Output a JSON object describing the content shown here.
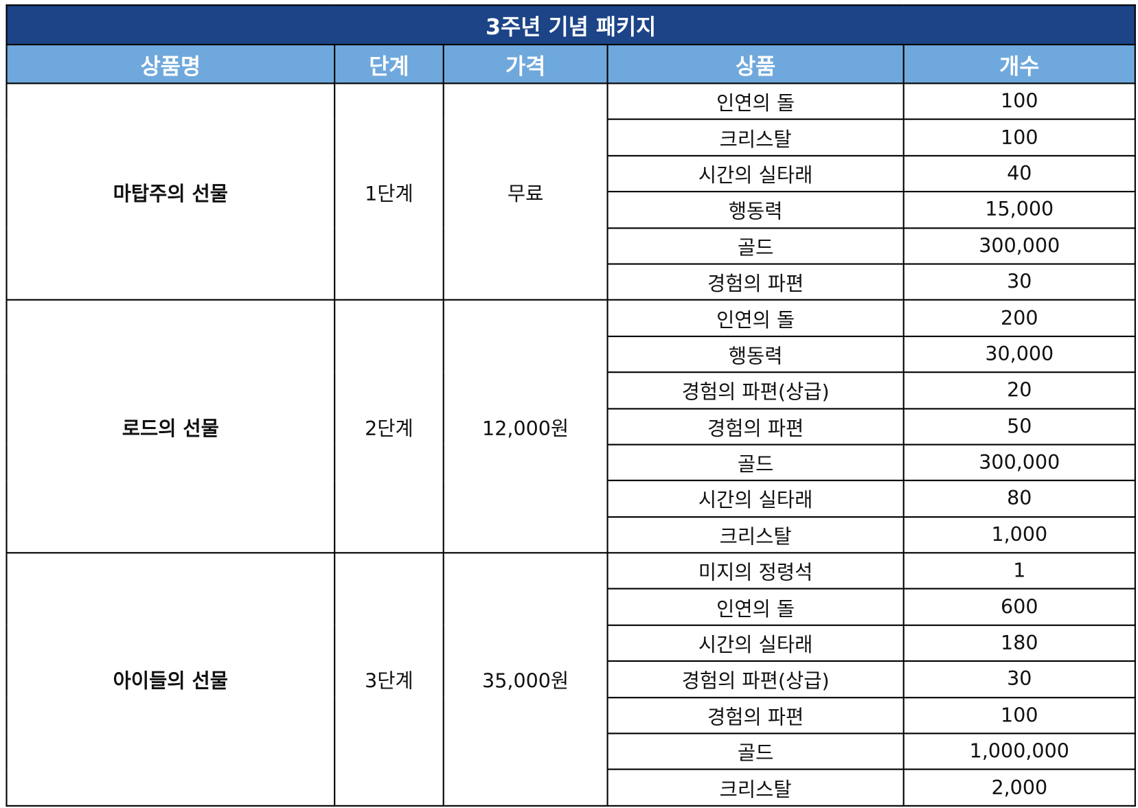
{
  "title": "3주년 기념 패키지",
  "headers": [
    "상품명",
    "단계",
    "가격",
    "상품",
    "개수"
  ],
  "colors": {
    "title_bg": "#1c4487",
    "header_bg": "#6fa8dc"
  },
  "packages": [
    {
      "name": "마탑주의 선물",
      "stage": "1단계",
      "price": "무료",
      "items": [
        {
          "item": "인연의 돌",
          "count": "100"
        },
        {
          "item": "크리스탈",
          "count": "100"
        },
        {
          "item": "시간의 실타래",
          "count": "40"
        },
        {
          "item": "행동력",
          "count": "15,000"
        },
        {
          "item": "골드",
          "count": "300,000"
        },
        {
          "item": "경험의 파편",
          "count": "30"
        }
      ]
    },
    {
      "name": "로드의 선물",
      "stage": "2단계",
      "price": "12,000원",
      "items": [
        {
          "item": "인연의 돌",
          "count": "200"
        },
        {
          "item": "행동력",
          "count": "30,000"
        },
        {
          "item": "경험의 파편(상급)",
          "count": "20"
        },
        {
          "item": "경험의 파편",
          "count": "50"
        },
        {
          "item": "골드",
          "count": "300,000"
        },
        {
          "item": "시간의 실타래",
          "count": "80"
        },
        {
          "item": "크리스탈",
          "count": "1,000"
        }
      ]
    },
    {
      "name": "아이들의 선물",
      "stage": "3단계",
      "price": "35,000원",
      "items": [
        {
          "item": "미지의 정령석",
          "count": "1"
        },
        {
          "item": "인연의 돌",
          "count": "600"
        },
        {
          "item": "시간의 실타래",
          "count": "180"
        },
        {
          "item": "경험의 파편(상급)",
          "count": "30"
        },
        {
          "item": "경험의 파편",
          "count": "100"
        },
        {
          "item": "골드",
          "count": "1,000,000"
        },
        {
          "item": "크리스탈",
          "count": "2,000"
        }
      ]
    }
  ]
}
